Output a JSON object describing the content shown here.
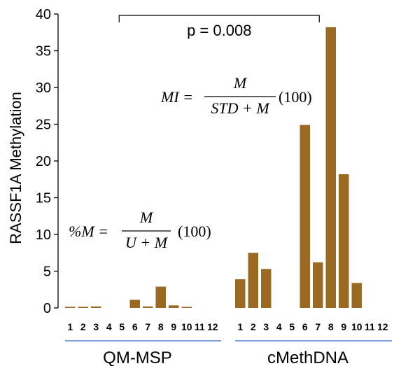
{
  "chart_data": {
    "type": "bar",
    "ylabel": "RASSF1A Methylation",
    "ylim": [
      0,
      40
    ],
    "yticks": [
      0,
      5,
      10,
      15,
      20,
      25,
      30,
      35,
      40
    ],
    "bar_color": "#9a6a22",
    "groups": [
      {
        "name": "QM-MSP",
        "categories": [
          "1",
          "2",
          "3",
          "4",
          "5",
          "6",
          "7",
          "8",
          "9",
          "10",
          "11",
          "12"
        ],
        "values": [
          0.15,
          0.15,
          0.2,
          0,
          0,
          1.1,
          0.2,
          2.9,
          0.35,
          0.1,
          0,
          0
        ]
      },
      {
        "name": "cMethDNA",
        "categories": [
          "1",
          "2",
          "3",
          "4",
          "5",
          "6",
          "7",
          "8",
          "9",
          "10",
          "11",
          "12"
        ],
        "values": [
          3.9,
          7.5,
          5.3,
          0,
          0,
          24.9,
          6.2,
          38.2,
          18.2,
          3.4,
          0,
          0
        ]
      }
    ],
    "annotation": {
      "text": "p = 0.008",
      "from_group": 0,
      "from_index": 4,
      "to_group": 1,
      "to_index": 6
    },
    "formulas": {
      "qm_msp": {
        "lhs": "%M =",
        "numerator": "M",
        "denominator": "U + M",
        "factor": "(100)"
      },
      "cmethdna": {
        "lhs": "MI =",
        "numerator": "M",
        "denominator": "STD + M",
        "factor": "(100)"
      }
    },
    "group_line_color": "#4a7fd4",
    "grid": false
  }
}
